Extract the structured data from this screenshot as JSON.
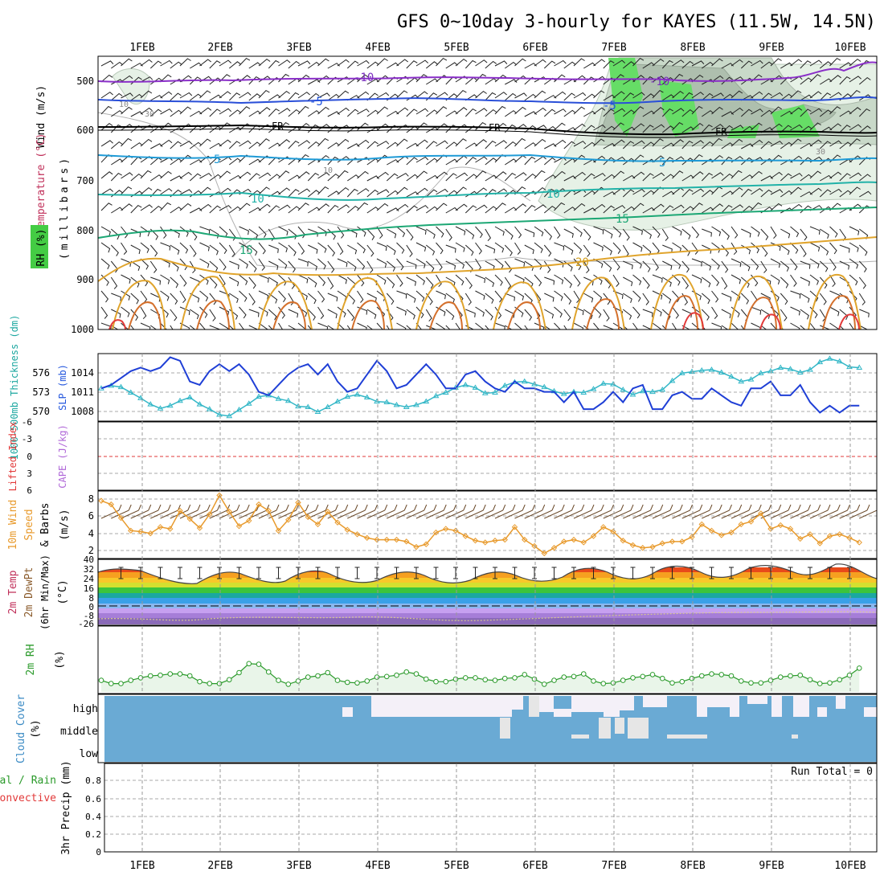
{
  "title": "GFS 0~10day 3-hourly for KAYES (11.5W, 14.5N)",
  "date_labels": [
    "1FEB",
    "2FEB",
    "3FEB",
    "4FEB",
    "5FEB",
    "6FEB",
    "7FEB",
    "8FEB",
    "9FEB",
    "10FEB"
  ],
  "colors": {
    "frame": "#000000",
    "grid": "#9a9a9a",
    "rh_green": "#66dd66",
    "rh_light": "#e8f2e8",
    "slp": "#1f3fd6",
    "thickness": "#33b7c7",
    "wind_speed": "#e89a2c",
    "rh2m": "#2a9a2a",
    "rh2m_fill": "#e9f5e9",
    "cloud": "#6aaad4",
    "cloud_clear": "#f4f0f8",
    "lifted_index_zero": "#e23a3a"
  },
  "panels": {
    "upper_air": {
      "ylabel_wind": "Wind (m/s)",
      "ylabel_temp": "Temperature (°C)",
      "ylabel_rh": "RH (%)",
      "ylabel_units": "(millibars)",
      "yticks": [
        "500",
        "600",
        "700",
        "800",
        "900",
        "1000"
      ],
      "contour_labels": [
        {
          "text": "-10",
          "color": "#7b2fbf"
        },
        {
          "text": "-10",
          "color": "#7b2fbf"
        },
        {
          "text": "-5",
          "color": "#2255dd"
        },
        {
          "text": "-5",
          "color": "#2255dd"
        },
        {
          "text": "FR",
          "color": "#000000"
        },
        {
          "text": "FR",
          "color": "#000000"
        },
        {
          "text": "FR",
          "color": "#000000"
        },
        {
          "text": "5",
          "color": "#1e9ad6"
        },
        {
          "text": "5",
          "color": "#1e9ad6"
        },
        {
          "text": "10",
          "color": "#22b2a8"
        },
        {
          "text": "10",
          "color": "#22b2a8"
        },
        {
          "text": "15",
          "color": "#1ca774"
        },
        {
          "text": "15",
          "color": "#1ca774"
        },
        {
          "text": "20",
          "color": "#d4a020"
        },
        {
          "text": "30",
          "color": "#888888"
        },
        {
          "text": "10",
          "color": "#888888"
        },
        {
          "text": "30",
          "color": "#888888"
        },
        {
          "text": "10",
          "color": "#888888"
        }
      ]
    },
    "slp_thickness": {
      "ylabel_left": "1000-500mb Thickness (dm)",
      "ylabel_right": "SLP (mb)",
      "thickness_ticks": [
        "576",
        "573",
        "570"
      ],
      "slp_ticks": [
        "1014",
        "1011",
        "1008"
      ]
    },
    "stability": {
      "ylabel_li": "Lifted Index",
      "ylabel_cape": "CAPE (J/kg)",
      "yticks": [
        "-6",
        "-3",
        "0",
        "3",
        "6"
      ]
    },
    "wind10m": {
      "ylabel_1": "10m Wind",
      "ylabel_2": "Speed",
      "ylabel_3": "& Barbs",
      "ylabel_units": "(m/s)",
      "yticks": [
        "8",
        "6",
        "4",
        "2"
      ]
    },
    "temp2m": {
      "ylabel_1": "2m Temp",
      "ylabel_2": "2m DewPt",
      "ylabel_3": "(6hr Min/Max)",
      "ylabel_units": "(°C)",
      "yticks": [
        "40",
        "32",
        "24",
        "16",
        "8",
        "0",
        "-8",
        "-26"
      ]
    },
    "rh2m": {
      "ylabel": "2m RH",
      "ylabel_units": "(%)"
    },
    "cloud": {
      "ylabel": "Cloud Cover",
      "ylabel_units": "(%)",
      "levels": [
        "high",
        "middle",
        "low"
      ]
    },
    "precip": {
      "ylabel_1": "Total / Rain",
      "ylabel_2": "Convective",
      "ylabel_3": "3hr Precip (mm)",
      "yticks": [
        "0.8",
        "0.6",
        "0.4",
        "0.2",
        "0"
      ],
      "run_total": "Run Total = 0"
    }
  },
  "chart_data": [
    {
      "type": "line",
      "name": "SLP (mb)",
      "x_unit": "3-hourly steps from 31 Jan 12Z",
      "x": [
        0,
        1,
        2,
        3,
        4,
        5,
        6,
        7,
        8,
        9,
        10,
        11,
        12,
        13,
        14,
        15,
        16,
        17,
        18,
        19,
        20,
        21,
        22,
        23,
        24,
        25,
        26,
        27,
        28,
        29,
        30,
        31,
        32,
        33,
        34,
        35,
        36,
        37,
        38,
        39,
        40,
        41,
        42,
        43,
        44,
        45,
        46,
        47,
        48,
        49,
        50,
        51,
        52,
        53,
        54,
        55,
        56,
        57,
        58,
        59,
        60,
        61,
        62,
        63,
        64,
        65,
        66,
        67,
        68,
        69,
        70,
        71,
        72,
        73,
        74,
        75,
        76,
        77
      ],
      "values": [
        1011,
        1011.5,
        1012.5,
        1013.5,
        1014,
        1013.5,
        1014,
        1015.5,
        1015,
        1012,
        1011.5,
        1013.5,
        1014.5,
        1013.5,
        1014.5,
        1013,
        1010.5,
        1010,
        1011.5,
        1013,
        1014,
        1014.5,
        1013,
        1014.5,
        1012,
        1010.5,
        1011,
        1013,
        1015,
        1013.5,
        1011,
        1011.5,
        1013,
        1014.5,
        1013,
        1011,
        1011,
        1013,
        1013.5,
        1012,
        1011,
        1010.5,
        1012,
        1011,
        1011,
        1010.5,
        1010.5,
        1009,
        1010.5,
        1008,
        1008,
        1009,
        1010.5,
        1009,
        1011,
        1011.5,
        1008,
        1008,
        1010,
        1010.5,
        1009.5,
        1009.5,
        1011,
        1010,
        1009,
        1008.5,
        1011,
        1011,
        1012,
        1010,
        1010,
        1011.5,
        1009,
        1007.5,
        1008.5,
        1007.5,
        1008.5,
        1008.5
      ],
      "ylim": [
        1006.5,
        1015.8
      ]
    },
    {
      "type": "line",
      "name": "1000-500mb Thickness (dm)",
      "x": [
        0,
        1,
        2,
        3,
        4,
        5,
        6,
        7,
        8,
        9,
        10,
        11,
        12,
        13,
        14,
        15,
        16,
        17,
        18,
        19,
        20,
        21,
        22,
        23,
        24,
        25,
        26,
        27,
        28,
        29,
        30,
        31,
        32,
        33,
        34,
        35,
        36,
        37,
        38,
        39,
        40,
        41,
        42,
        43,
        44,
        45,
        46,
        47,
        48,
        49,
        50,
        51,
        52,
        53,
        54,
        55,
        56,
        57,
        58,
        59,
        60,
        61,
        62,
        63,
        64,
        65,
        66,
        67,
        68,
        69,
        70,
        71,
        72,
        73,
        74,
        75,
        76,
        77
      ],
      "values": [
        573,
        573.4,
        573.2,
        572.4,
        571.6,
        570.7,
        570.1,
        570.5,
        571.2,
        571.7,
        570.7,
        570,
        569.2,
        569,
        569.9,
        570.8,
        571.8,
        572,
        571.5,
        571.2,
        570.4,
        570.3,
        569.6,
        570.3,
        571.1,
        571.8,
        572.1,
        571.7,
        571.1,
        571,
        570.6,
        570.3,
        570.6,
        571.1,
        571.9,
        572.4,
        573.1,
        573.5,
        573.1,
        572.3,
        572.4,
        573.4,
        573.9,
        574,
        573.6,
        573.2,
        572.6,
        572.2,
        572.5,
        572.4,
        572.9,
        573.7,
        573.6,
        572.8,
        572.1,
        572.6,
        572.5,
        572.8,
        574.1,
        575.2,
        575.4,
        575.6,
        575.7,
        575.3,
        574.7,
        574,
        574.3,
        575.2,
        575.5,
        576,
        575.8,
        575.3,
        575.7,
        576.8,
        577.3,
        576.9,
        576.1,
        576
      ],
      "ylim": [
        568.5,
        577.8
      ]
    },
    {
      "type": "line",
      "name": "10m Wind Speed (m/s)",
      "x": [
        0,
        1,
        2,
        3,
        4,
        5,
        6,
        7,
        8,
        9,
        10,
        11,
        12,
        13,
        14,
        15,
        16,
        17,
        18,
        19,
        20,
        21,
        22,
        23,
        24,
        25,
        26,
        27,
        28,
        29,
        30,
        31,
        32,
        33,
        34,
        35,
        36,
        37,
        38,
        39,
        40,
        41,
        42,
        43,
        44,
        45,
        46,
        47,
        48,
        49,
        50,
        51,
        52,
        53,
        54,
        55,
        56,
        57,
        58,
        59,
        60,
        61,
        62,
        63,
        64,
        65,
        66,
        67,
        68,
        69,
        70,
        71,
        72,
        73,
        74,
        75,
        76,
        77
      ],
      "values": [
        7.7,
        7.3,
        5.8,
        4.4,
        4.3,
        4.1,
        4.8,
        4.6,
        6.6,
        5.7,
        4.7,
        6.2,
        8.3,
        6.5,
        4.9,
        5.5,
        7.3,
        6.6,
        4.4,
        5.6,
        7.5,
        5.9,
        5.1,
        6.5,
        5.3,
        4.5,
        4.0,
        3.6,
        3.4,
        3.4,
        3.4,
        3.2,
        2.6,
        2.9,
        4.2,
        4.6,
        4.4,
        3.8,
        3.3,
        3.1,
        3.3,
        3.4,
        4.8,
        3.4,
        2.7,
        1.9,
        2.5,
        3.2,
        3.4,
        3.1,
        3.8,
        4.8,
        4.3,
        3.3,
        2.8,
        2.5,
        2.6,
        3.0,
        3.2,
        3.2,
        3.7,
        5.1,
        4.4,
        3.9,
        4.2,
        5.1,
        5.4,
        6.3,
        4.6,
        5.0,
        4.6,
        3.5,
        4.0,
        3.0,
        3.8,
        4.0,
        3.6,
        3.1
      ],
      "ylim": [
        1.5,
        8.6
      ]
    },
    {
      "type": "line",
      "name": "2m RH (%)",
      "x": [
        0,
        1,
        2,
        3,
        4,
        5,
        6,
        7,
        8,
        9,
        10,
        11,
        12,
        13,
        14,
        15,
        16,
        17,
        18,
        19,
        20,
        21,
        22,
        23,
        24,
        25,
        26,
        27,
        28,
        29,
        30,
        31,
        32,
        33,
        34,
        35,
        36,
        37,
        38,
        39,
        40,
        41,
        42,
        43,
        44,
        45,
        46,
        47,
        48,
        49,
        50,
        51,
        52,
        53,
        54,
        55,
        56,
        57,
        58,
        59,
        60,
        61,
        62,
        63,
        64,
        65,
        66,
        67,
        68,
        69,
        70,
        71,
        72,
        73,
        74,
        75,
        76,
        77
      ],
      "values": [
        18,
        13,
        13,
        18,
        22,
        25,
        26,
        28,
        28,
        25,
        16,
        13,
        13,
        19,
        30,
        44,
        43,
        31,
        18,
        12,
        17,
        23,
        25,
        30,
        18,
        15,
        14,
        17,
        23,
        24,
        26,
        31,
        28,
        20,
        16,
        16,
        20,
        22,
        22,
        19,
        18,
        21,
        22,
        27,
        20,
        12,
        18,
        23,
        24,
        28,
        17,
        13,
        14,
        18,
        22,
        24,
        27,
        21,
        14,
        16,
        21,
        25,
        28,
        27,
        25,
        17,
        14,
        14,
        18,
        23,
        25,
        26,
        19,
        13,
        14,
        19,
        26,
        37
      ],
      "ylim": [
        0,
        100
      ]
    },
    {
      "type": "line",
      "name": "3hr Precip (mm)",
      "values": [],
      "ylim": [
        0,
        0.95
      ]
    }
  ]
}
